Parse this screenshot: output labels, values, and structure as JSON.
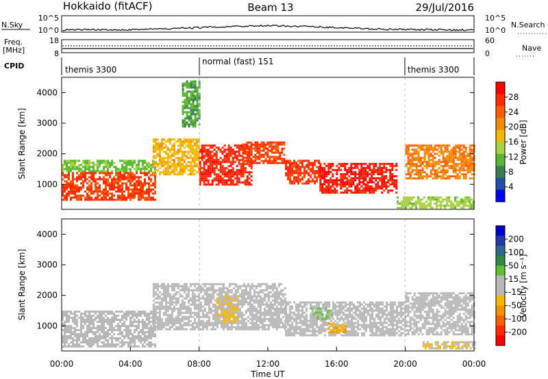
{
  "header": {
    "station": "Hokkaido (fitACF)",
    "beam": "Beam 13",
    "date": "29/Jul/2016"
  },
  "strips": {
    "nsky_label": "N.Sky",
    "nsearch_label": "N.Search",
    "nsky_ticks": [
      "10^5",
      "10^0"
    ],
    "nsearch_ticks": [
      "10^5",
      "10^0"
    ],
    "freq_label_1": "Freq.",
    "freq_label_2": "[MHz]",
    "freq_ticks": [
      "18",
      "8"
    ],
    "nave_label": "Nave",
    "nave_ticks": [
      "60",
      "0"
    ],
    "cpid_label": "CPID",
    "cpid_segments": [
      {
        "label": "themis 3300",
        "start_hour": 0,
        "end_hour": 8
      },
      {
        "label": "normal (fast) 151",
        "start_hour": 8,
        "end_hour": 20
      },
      {
        "label": "themis 3300",
        "start_hour": 20,
        "end_hour": 24
      }
    ]
  },
  "panels": {
    "ylabel": "Slant Range [km]",
    "xlabel": "Time UT",
    "y_ticks": [
      "1000",
      "2000",
      "3000",
      "4000"
    ],
    "x_ticks": [
      "00:00",
      "04:00",
      "08:00",
      "12:00",
      "16:00",
      "20:00",
      "00:00"
    ]
  },
  "power_colorbar": {
    "label": "Power [dB]",
    "ticks": [
      "4",
      "8",
      "12",
      "16",
      "20",
      "24",
      "28"
    ],
    "colors": [
      "#0000ff",
      "#1f4fa8",
      "#3a7d4e",
      "#58b832",
      "#a8d040",
      "#f5b800",
      "#f58a00",
      "#ff5a00",
      "#ff2a00",
      "#ff0000"
    ]
  },
  "velocity_colorbar": {
    "label": "Velocity [m s⁻¹]",
    "ticks": [
      "200",
      "100",
      "50",
      "15",
      "-15",
      "-50",
      "-100",
      "-200"
    ],
    "colors": [
      "#0000d0",
      "#2038b0",
      "#2a6a8a",
      "#2e8a40",
      "#60c030",
      "#b8b8b8",
      "#b8b8b8",
      "#f5b800",
      "#f59000",
      "#f56000",
      "#ff2a00",
      "#ff0000"
    ]
  },
  "chart_data": {
    "type": "heatmap",
    "title": "Hokkaido (fitACF)",
    "subtitle": "Beam 13",
    "date": "29/Jul/2016",
    "xlabel": "Time UT",
    "ylabel": "Slant Range [km]",
    "x_range_hours": [
      0,
      24
    ],
    "y_range_km": [
      180,
      4500
    ],
    "x_ticks": [
      "00:00",
      "04:00",
      "08:00",
      "12:00",
      "16:00",
      "20:00",
      "00:00"
    ],
    "y_ticks": [
      1000,
      2000,
      3000,
      4000
    ],
    "panels": [
      {
        "name": "Power",
        "units": "dB",
        "colorbar_range": [
          0,
          32
        ],
        "regions": [
          {
            "t0": 0.0,
            "t1": 5.5,
            "r0": 500,
            "r1": 1400,
            "value": 26
          },
          {
            "t0": 0.0,
            "t1": 5.5,
            "r0": 1400,
            "r1": 1800,
            "value": 12
          },
          {
            "t0": 5.3,
            "t1": 8.0,
            "r0": 1300,
            "r1": 2500,
            "value": 18
          },
          {
            "t0": 7.0,
            "t1": 8.0,
            "r0": 2900,
            "r1": 4400,
            "value": 10
          },
          {
            "t0": 8.0,
            "t1": 11.0,
            "r0": 1000,
            "r1": 2300,
            "value": 28
          },
          {
            "t0": 10.5,
            "t1": 13.0,
            "r0": 1700,
            "r1": 2400,
            "value": 26
          },
          {
            "t0": 13.0,
            "t1": 15.0,
            "r0": 1000,
            "r1": 1800,
            "value": 27
          },
          {
            "t0": 15.0,
            "t1": 19.5,
            "r0": 700,
            "r1": 1700,
            "value": 29
          },
          {
            "t0": 20.0,
            "t1": 24.0,
            "r0": 1200,
            "r1": 2300,
            "value": 22
          },
          {
            "t0": 19.5,
            "t1": 24.0,
            "r0": 250,
            "r1": 600,
            "value": 14
          }
        ]
      },
      {
        "name": "Velocity",
        "units": "m s-1",
        "colorbar_range": [
          -250,
          250
        ],
        "regions": [
          {
            "t0": 0.0,
            "t1": 5.5,
            "r0": 300,
            "r1": 1500,
            "value": 0
          },
          {
            "t0": 5.3,
            "t1": 13.0,
            "r0": 900,
            "r1": 2400,
            "value": 0
          },
          {
            "t0": 9.0,
            "t1": 10.3,
            "r0": 1100,
            "r1": 2000,
            "value": -40
          },
          {
            "t0": 13.0,
            "t1": 20.0,
            "r0": 700,
            "r1": 1800,
            "value": 0
          },
          {
            "t0": 14.5,
            "t1": 15.8,
            "r0": 1200,
            "r1": 1600,
            "value": 30
          },
          {
            "t0": 15.5,
            "t1": 16.5,
            "r0": 800,
            "r1": 1100,
            "value": -70
          },
          {
            "t0": 20.0,
            "t1": 24.0,
            "r0": 700,
            "r1": 2100,
            "value": 0
          },
          {
            "t0": 21.0,
            "t1": 24.0,
            "r0": 250,
            "r1": 500,
            "value": -40
          }
        ]
      }
    ]
  }
}
